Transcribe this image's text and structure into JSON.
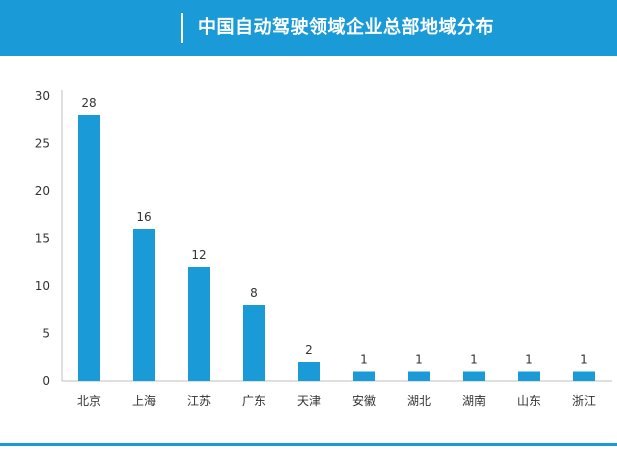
{
  "header": {
    "title": "中国自动驾驶领域企业总部地域分布"
  },
  "chart_data": {
    "type": "bar",
    "title": "中国自动驾驶领域企业总部地域分布",
    "categories": [
      "北京",
      "上海",
      "江苏",
      "广东",
      "天津",
      "安徽",
      "湖北",
      "湖南",
      "山东",
      "浙江"
    ],
    "values": [
      28,
      16,
      12,
      8,
      2,
      1,
      1,
      1,
      1,
      1
    ],
    "ylim": [
      0,
      30
    ],
    "yticks": [
      0,
      5,
      10,
      15,
      20,
      25,
      30
    ],
    "grid": false,
    "legend": "none",
    "data_labels": true,
    "colors": {
      "bar": "#1a9ad6",
      "axis": "#bfbfbf",
      "text": "#333333"
    }
  }
}
